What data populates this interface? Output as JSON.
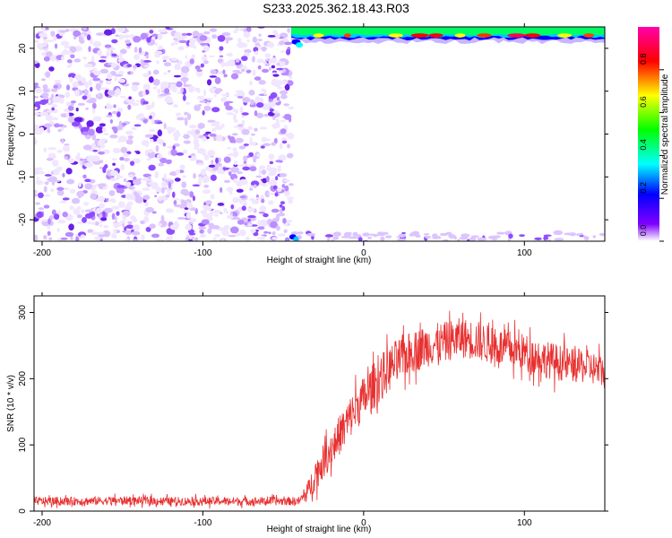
{
  "title": "S233.2025.362.18.43.R03",
  "colors": {
    "snr_line": "#e83030",
    "background": "#ffffff",
    "axis": "#000000",
    "scatter_palette": [
      "#f1e6ff",
      "#dcc4ff",
      "#b98cff",
      "#8f4dff",
      "#6a1fe6"
    ]
  },
  "chart_data": [
    {
      "type": "heatmap",
      "name": "spectrogram",
      "title": "S233.2025.362.18.43.R03",
      "xlabel": "Height of straight line (km)",
      "ylabel": "Frequency (Hz)",
      "xlim": [
        -205,
        150
      ],
      "ylim": [
        -25,
        25
      ],
      "xticks": [
        -200,
        -100,
        0,
        100
      ],
      "xtick_labels": [
        "-200",
        "-100",
        "0",
        "100"
      ],
      "yticks": [
        -20,
        -10,
        0,
        10,
        20
      ],
      "ytick_labels": [
        "-20",
        "-10",
        "0",
        "10",
        "20"
      ],
      "regions": [
        {
          "description": "noise speckle",
          "x_range": [
            -205,
            -45
          ],
          "y_range": [
            -25,
            25
          ],
          "amplitude": [
            0.05,
            0.2
          ]
        },
        {
          "description": "signal band near top edge",
          "x_range": [
            -45,
            150
          ],
          "y_range": [
            21,
            25
          ],
          "amplitude": [
            0.2,
            0.95
          ]
        },
        {
          "description": "faint speckle near bottom edge",
          "x_range": [
            -45,
            150
          ],
          "y_range": [
            -25,
            -23
          ],
          "amplitude": [
            0.05,
            0.15
          ]
        }
      ],
      "colorbar": {
        "label": "Normalized spectral amplitude",
        "range": [
          0,
          1
        ],
        "ticks": [
          0.0,
          0.2,
          0.4,
          0.6,
          0.8
        ],
        "tick_labels": [
          "0.0",
          "0.2",
          "0.4",
          "0.6",
          "0.8"
        ],
        "colors": [
          "#ff00ff",
          "#ff0000",
          "#ffff00",
          "#00ff00",
          "#00ffff",
          "#0000ff",
          "#8000ff",
          "#ffffff"
        ]
      }
    },
    {
      "type": "line",
      "name": "snr",
      "xlabel": "Height of straight line (km)",
      "ylabel": "SNR (10 * v/v)",
      "xlim": [
        -205,
        150
      ],
      "ylim": [
        0,
        325
      ],
      "xticks": [
        -200,
        -100,
        0,
        100
      ],
      "xtick_labels": [
        "-200",
        "-100",
        "0",
        "100"
      ],
      "yticks": [
        0,
        100,
        200,
        300
      ],
      "ytick_labels": [
        "0",
        "100",
        "200",
        "300"
      ],
      "series": [
        {
          "name": "SNR",
          "x": [
            -205,
            -180,
            -150,
            -120,
            -90,
            -60,
            -40,
            -35,
            -30,
            -25,
            -20,
            -15,
            -10,
            -5,
            0,
            10,
            20,
            30,
            40,
            50,
            60,
            70,
            80,
            90,
            100,
            110,
            120,
            130,
            140,
            150
          ],
          "mean": [
            15,
            15,
            16,
            15,
            15,
            15,
            15,
            28,
            55,
            75,
            95,
            115,
            135,
            155,
            170,
            200,
            225,
            240,
            250,
            255,
            262,
            258,
            250,
            245,
            240,
            232,
            225,
            220,
            218,
            210
          ],
          "noise": [
            8,
            8,
            8,
            8,
            8,
            8,
            8,
            18,
            30,
            32,
            35,
            38,
            40,
            42,
            42,
            45,
            42,
            40,
            40,
            38,
            38,
            38,
            36,
            36,
            35,
            35,
            35,
            32,
            32,
            32
          ]
        }
      ]
    }
  ]
}
